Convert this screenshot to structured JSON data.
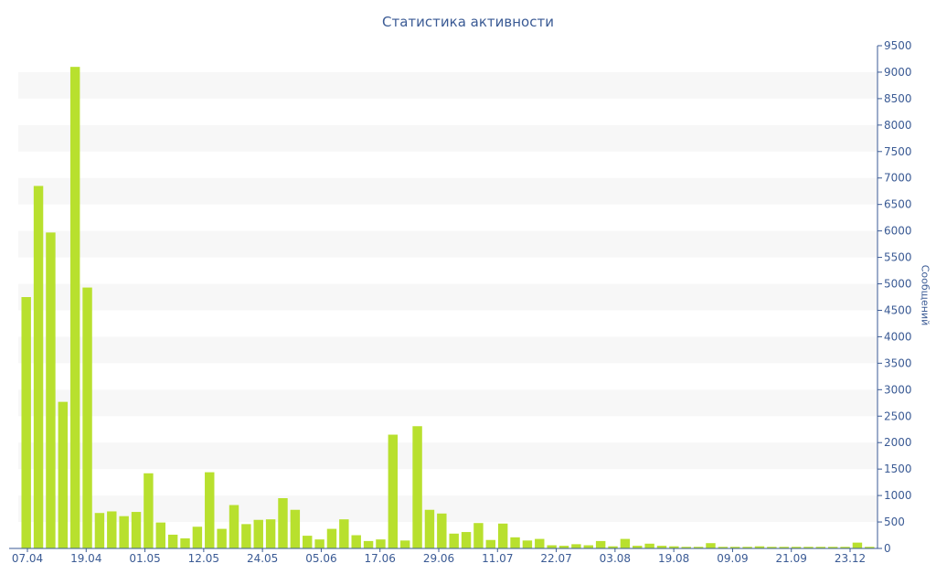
{
  "chart_data": {
    "type": "bar",
    "title": "Статистика активности",
    "ylabel": "Сообщений",
    "y_axis_position": "right",
    "ylim": [
      0,
      9500
    ],
    "y_ticks": [
      0,
      500,
      1000,
      1500,
      2000,
      2500,
      3000,
      3500,
      4000,
      4500,
      5000,
      5500,
      6000,
      6500,
      7000,
      7500,
      8000,
      8500,
      9000,
      9500
    ],
    "x_tick_labels": [
      "07.04",
      "19.04",
      "01.05",
      "12.05",
      "24.05",
      "05.06",
      "17.06",
      "29.06",
      "11.07",
      "22.07",
      "03.08",
      "19.08",
      "09.09",
      "21.09",
      "23.12"
    ],
    "grid": "alternating horizontal bands",
    "colors": {
      "bar": "#b8e02e",
      "text": "#3a5a94",
      "band": "#f7f7f7"
    },
    "values": [
      4750,
      6850,
      5970,
      2770,
      9100,
      4930,
      670,
      700,
      610,
      690,
      1420,
      490,
      260,
      190,
      410,
      1440,
      370,
      820,
      460,
      540,
      550,
      950,
      730,
      240,
      170,
      370,
      550,
      250,
      140,
      170,
      2150,
      150,
      2310,
      730,
      660,
      280,
      310,
      480,
      160,
      470,
      210,
      150,
      180,
      60,
      50,
      80,
      60,
      140,
      40,
      180,
      50,
      90,
      50,
      40,
      30,
      30,
      100,
      30,
      30,
      30,
      40,
      30,
      30,
      30,
      30,
      30,
      30,
      30,
      110,
      30
    ]
  }
}
